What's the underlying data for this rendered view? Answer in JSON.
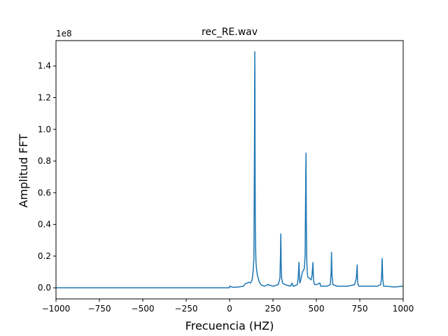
{
  "chart_data": {
    "type": "line",
    "title": "rec_RE.wav",
    "xlabel": "Frecuencia (HZ)",
    "ylabel": "Amplitud FFT",
    "offset_text": "1e8",
    "xlim": [
      -1000,
      1000
    ],
    "ylim": [
      -0.07,
      1.56
    ],
    "x_ticks": [
      -1000,
      -750,
      -500,
      -250,
      0,
      250,
      500,
      750,
      1000
    ],
    "x_tick_labels": [
      "−1000",
      "−750",
      "−500",
      "−250",
      "0",
      "250",
      "500",
      "750",
      "1000"
    ],
    "y_ticks": [
      0.0,
      0.2,
      0.4,
      0.6,
      0.8,
      1.0,
      1.2,
      1.4
    ],
    "y_tick_labels": [
      "0.0",
      "0.2",
      "0.4",
      "0.6",
      "0.8",
      "1.0",
      "1.2",
      "1.4"
    ],
    "grid": false,
    "series_color": "#1f77b4",
    "series": [
      {
        "name": "",
        "x": [
          -1000,
          -500,
          -1,
          0,
          20,
          50,
          80,
          90,
          100,
          110,
          120,
          130,
          135,
          140,
          143,
          145,
          146,
          147,
          148,
          150,
          152,
          155,
          160,
          170,
          180,
          200,
          220,
          250,
          280,
          290,
          293,
          295,
          297,
          300,
          305,
          320,
          350,
          360,
          365,
          370,
          390,
          395,
          400,
          403,
          405,
          410,
          420,
          430,
          435,
          438,
          440,
          442,
          444,
          447,
          450,
          460,
          470,
          475,
          480,
          483,
          485,
          490,
          500,
          520,
          525,
          530,
          560,
          580,
          585,
          587,
          590,
          595,
          620,
          680,
          720,
          730,
          735,
          737,
          740,
          745,
          780,
          850,
          870,
          875,
          879,
          882,
          887,
          900,
          950,
          1000
        ],
        "y": [
          0.0,
          0.0,
          0.0,
          0.01,
          0.003,
          0.005,
          0.01,
          0.025,
          0.03,
          0.035,
          0.03,
          0.05,
          0.1,
          0.18,
          0.8,
          1.49,
          1.3,
          0.72,
          0.4,
          0.25,
          0.16,
          0.12,
          0.08,
          0.04,
          0.02,
          0.01,
          0.02,
          0.01,
          0.02,
          0.06,
          0.2,
          0.34,
          0.15,
          0.06,
          0.03,
          0.02,
          0.01,
          0.03,
          0.01,
          0.01,
          0.02,
          0.06,
          0.16,
          0.05,
          0.03,
          0.05,
          0.1,
          0.12,
          0.2,
          0.6,
          0.85,
          0.42,
          0.2,
          0.1,
          0.07,
          0.06,
          0.05,
          0.08,
          0.16,
          0.06,
          0.04,
          0.02,
          0.02,
          0.03,
          0.01,
          0.01,
          0.01,
          0.02,
          0.1,
          0.225,
          0.08,
          0.02,
          0.01,
          0.01,
          0.02,
          0.06,
          0.145,
          0.05,
          0.02,
          0.01,
          0.01,
          0.01,
          0.02,
          0.06,
          0.185,
          0.06,
          0.01,
          0.01,
          0.005,
          0.01
        ]
      }
    ]
  }
}
